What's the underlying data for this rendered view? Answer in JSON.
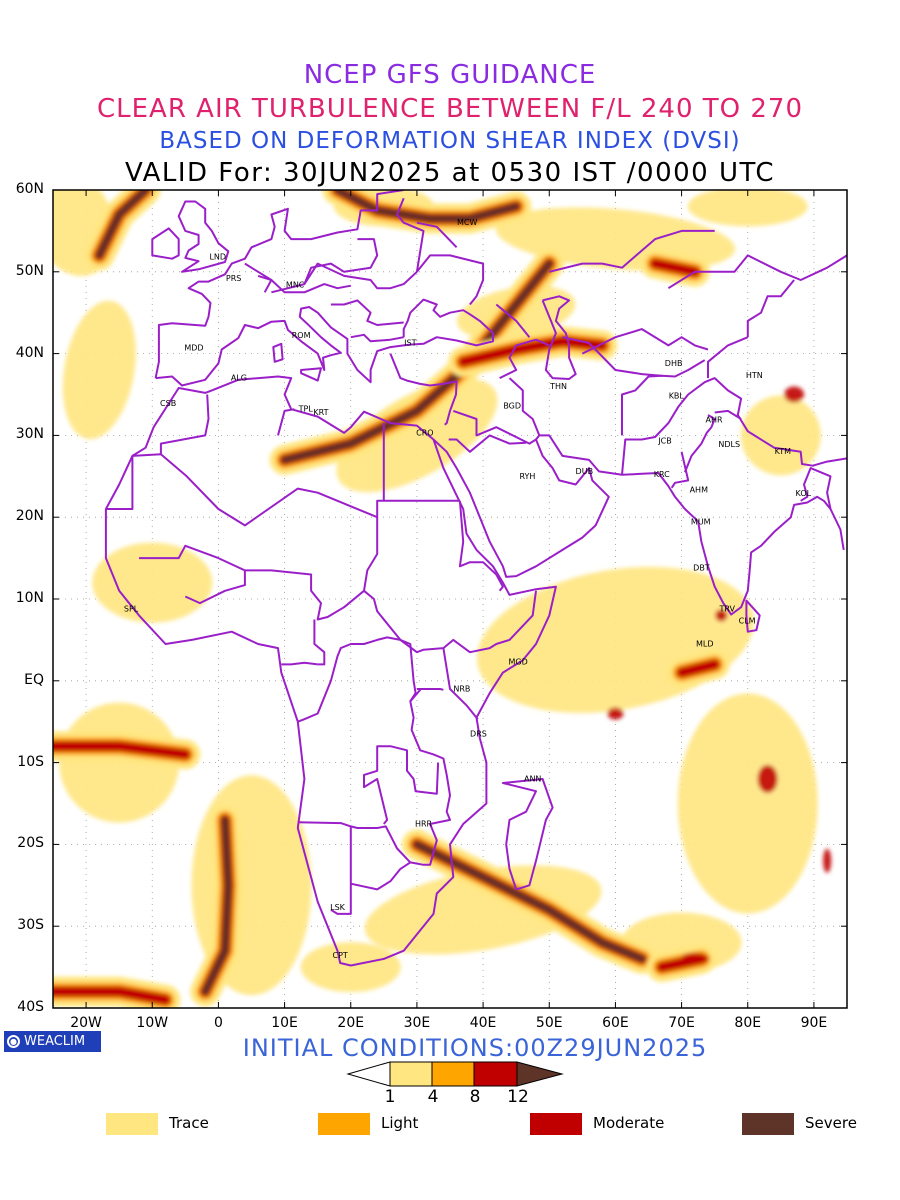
{
  "titles": {
    "line1": "NCEP GFS GUIDANCE",
    "line2": "CLEAR AIR TURBULENCE BETWEEN F/L 240 TO 270",
    "line3": "BASED ON DEFORMATION SHEAR INDEX (DVSI)",
    "line4": "VALID For: 30JUN2025 at 0530 IST /0000 UTC"
  },
  "colors": {
    "title1": "#8a2be2",
    "title2": "#e0226e",
    "title3": "#2b4fe0",
    "title4": "#000000",
    "boundaries": "#9b1fc9",
    "trace": "#ffe680",
    "light": "#ffa500",
    "moderate": "#c00000",
    "severe": "#5e3328"
  },
  "axes": {
    "lat_labels": [
      "60N",
      "50N",
      "40N",
      "30N",
      "20N",
      "10N",
      "EQ",
      "10S",
      "20S",
      "30S",
      "40S"
    ],
    "lon_labels": [
      "20W",
      "10W",
      "0",
      "10E",
      "20E",
      "30E",
      "40E",
      "50E",
      "60E",
      "70E",
      "80E",
      "90E"
    ]
  },
  "cities": [
    {
      "code": "MCW",
      "lon": 37.6,
      "lat": 55.7
    },
    {
      "code": "LND",
      "lon": -0.1,
      "lat": 51.5
    },
    {
      "code": "PRS",
      "lon": 2.3,
      "lat": 48.9
    },
    {
      "code": "MNC",
      "lon": 11.6,
      "lat": 48.1
    },
    {
      "code": "ROM",
      "lon": 12.5,
      "lat": 41.9
    },
    {
      "code": "MDD",
      "lon": -3.7,
      "lat": 40.4
    },
    {
      "code": "IST",
      "lon": 29.0,
      "lat": 41.0
    },
    {
      "code": "ALG",
      "lon": 3.1,
      "lat": 36.7
    },
    {
      "code": "CSB",
      "lon": -7.6,
      "lat": 33.6
    },
    {
      "code": "TPL",
      "lon": 13.2,
      "lat": 32.9
    },
    {
      "code": "KRT",
      "lon": 15.5,
      "lat": 32.5
    },
    {
      "code": "CRO",
      "lon": 31.2,
      "lat": 30.0
    },
    {
      "code": "BGD",
      "lon": 44.4,
      "lat": 33.3
    },
    {
      "code": "THN",
      "lon": 51.4,
      "lat": 35.7
    },
    {
      "code": "DHB",
      "lon": 68.8,
      "lat": 38.5
    },
    {
      "code": "HTN",
      "lon": 81.0,
      "lat": 37.0
    },
    {
      "code": "KBL",
      "lon": 69.2,
      "lat": 34.5
    },
    {
      "code": "AHR",
      "lon": 74.9,
      "lat": 31.6
    },
    {
      "code": "NDLS",
      "lon": 77.2,
      "lat": 28.6
    },
    {
      "code": "KTM",
      "lon": 85.3,
      "lat": 27.7
    },
    {
      "code": "JCB",
      "lon": 67.5,
      "lat": 29.0
    },
    {
      "code": "DUB",
      "lon": 55.3,
      "lat": 25.3
    },
    {
      "code": "RYH",
      "lon": 46.7,
      "lat": 24.7
    },
    {
      "code": "KRC",
      "lon": 67.0,
      "lat": 24.9
    },
    {
      "code": "AHM",
      "lon": 72.6,
      "lat": 23.0
    },
    {
      "code": "KOL",
      "lon": 88.4,
      "lat": 22.6
    },
    {
      "code": "MUM",
      "lon": 72.9,
      "lat": 19.1
    },
    {
      "code": "DBT",
      "lon": 73.0,
      "lat": 13.5
    },
    {
      "code": "TRV",
      "lon": 76.9,
      "lat": 8.5
    },
    {
      "code": "CLM",
      "lon": 79.9,
      "lat": 7.0
    },
    {
      "code": "SPL",
      "lon": -13.2,
      "lat": 8.5
    },
    {
      "code": "MLD",
      "lon": 73.5,
      "lat": 4.2
    },
    {
      "code": "MGD",
      "lon": 45.3,
      "lat": 2.0
    },
    {
      "code": "NRB",
      "lon": 36.8,
      "lat": -1.3
    },
    {
      "code": "DRS",
      "lon": 39.3,
      "lat": -6.8
    },
    {
      "code": "ANN",
      "lon": 47.5,
      "lat": -12.3
    },
    {
      "code": "HRR",
      "lon": 31.0,
      "lat": -17.8
    },
    {
      "code": "LSK",
      "lon": 18.0,
      "lat": -28.0
    },
    {
      "code": "CPT",
      "lon": 18.4,
      "lat": -33.9
    }
  ],
  "logo": {
    "text": "WEACLIM"
  },
  "initial_conditions": "INITIAL CONDITIONS:00Z29JUN2025",
  "colorbar": {
    "ticks": [
      "1",
      "4",
      "8",
      "12"
    ]
  },
  "legend": [
    {
      "label": "Trace",
      "color": "#ffe680"
    },
    {
      "label": "Light",
      "color": "#ffa500"
    },
    {
      "label": "Moderate",
      "color": "#c00000"
    },
    {
      "label": "Severe",
      "color": "#5e3328"
    }
  ]
}
